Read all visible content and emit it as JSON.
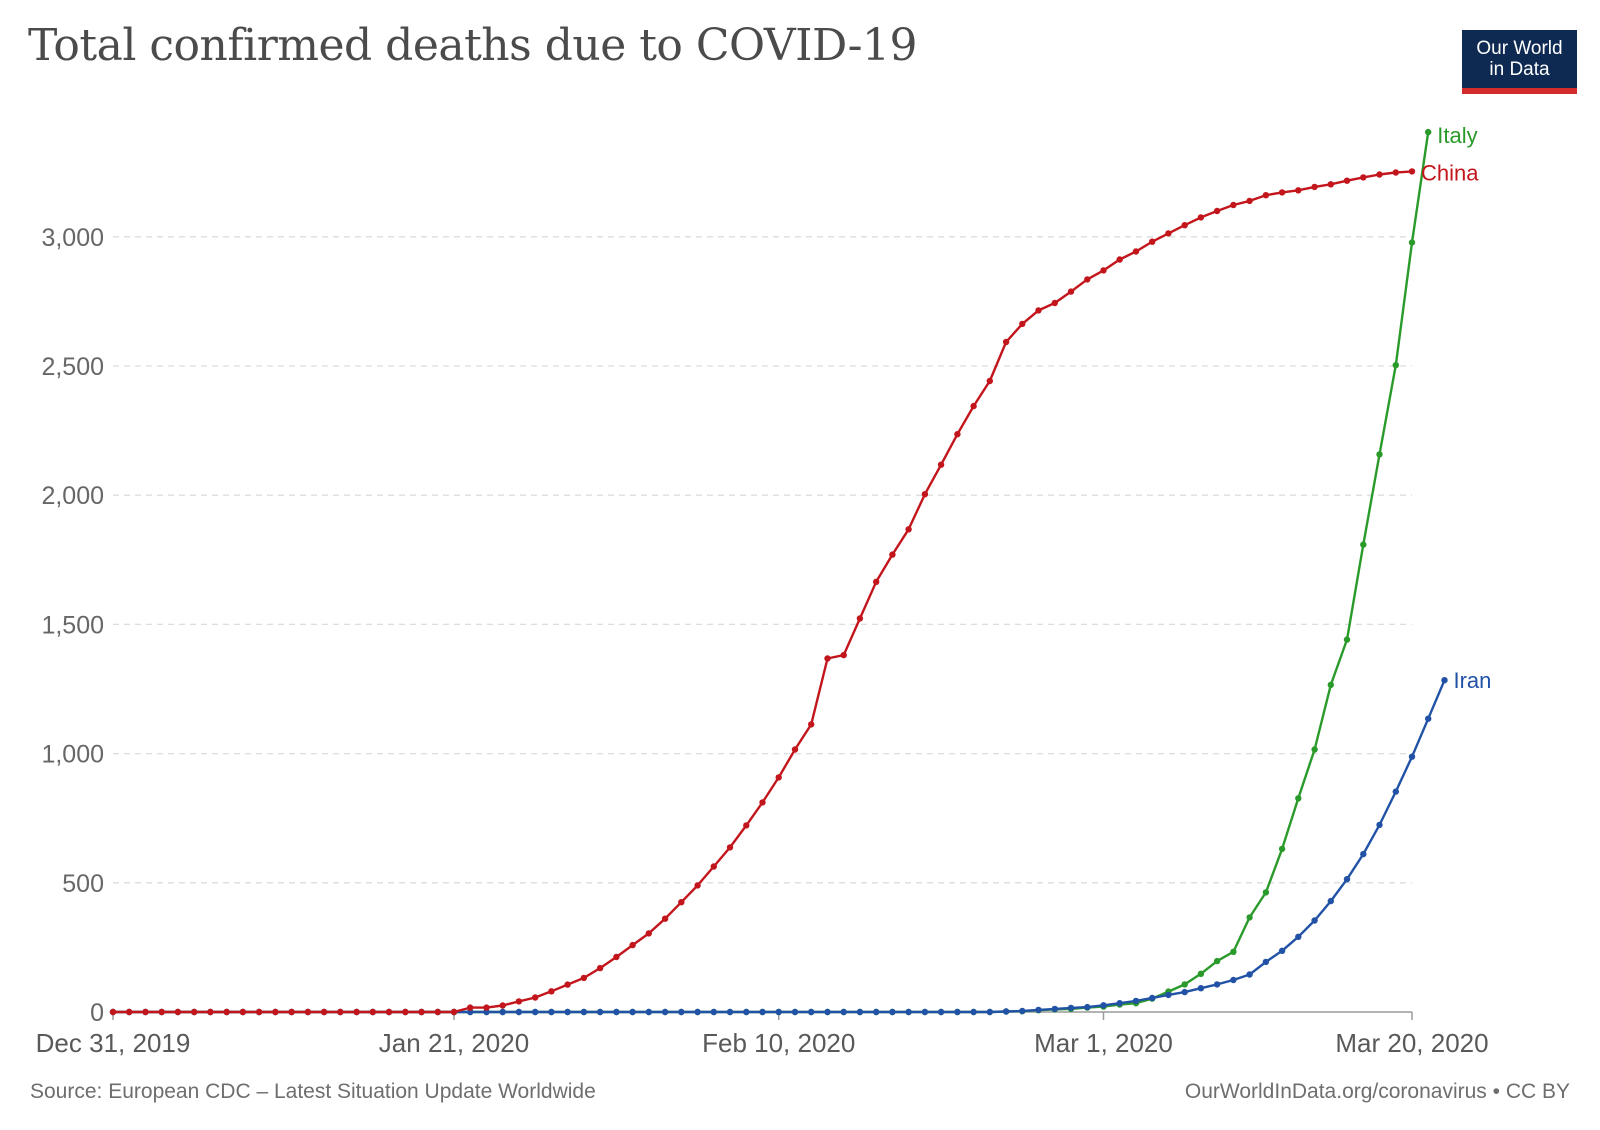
{
  "header": {
    "title": "Total confirmed deaths due to COVID-19",
    "logo_line1": "Our World",
    "logo_line2": "in Data"
  },
  "footer": {
    "source": "Source: European CDC – Latest Situation Update Worldwide",
    "credit": "OurWorldInData.org/coronavirus • CC BY"
  },
  "colors": {
    "china": "#c3161c",
    "italy": "#2a9a2a",
    "iran": "#2252a5",
    "logo_bg": "#0f2a52",
    "logo_stripe": "#d42b2b"
  },
  "chart_data": {
    "type": "line",
    "title": "Total confirmed deaths due to COVID-19",
    "x_start": "2019-12-31",
    "x_end": "2020-03-20",
    "x_ticks": [
      "Dec 31, 2019",
      "Jan 21, 2020",
      "Feb 10, 2020",
      "Mar 1, 2020",
      "Mar 20, 2020"
    ],
    "y_ticks": [
      "0",
      "500",
      "1,000",
      "1,500",
      "2,000",
      "2,500",
      "3,000"
    ],
    "ylim": [
      0,
      3405
    ],
    "grid": "horizontal dashed",
    "legend": "line end labels",
    "series": [
      {
        "name": "China",
        "color": "#c3161c",
        "values": [
          0,
          0,
          0,
          0,
          0,
          0,
          0,
          0,
          0,
          0,
          0,
          0,
          0,
          0,
          0,
          0,
          0,
          0,
          0,
          0,
          0,
          0,
          17,
          17,
          25,
          41,
          56,
          80,
          106,
          132,
          170,
          213,
          259,
          304,
          361,
          425,
          490,
          563,
          637,
          722,
          811,
          908,
          1016,
          1113,
          1368,
          1381,
          1523,
          1665,
          1770,
          1868,
          2004,
          2118,
          2236,
          2345,
          2442,
          2593,
          2663,
          2715,
          2744,
          2788,
          2835,
          2870,
          2912,
          2943,
          2981,
          3013,
          3045,
          3075,
          3100,
          3123,
          3139,
          3161,
          3172,
          3180,
          3193,
          3203,
          3217,
          3230,
          3241,
          3249,
          3253
        ]
      },
      {
        "name": "Italy",
        "color": "#2a9a2a",
        "values": [
          0,
          0,
          0,
          0,
          0,
          0,
          0,
          0,
          0,
          0,
          0,
          0,
          0,
          0,
          0,
          0,
          0,
          0,
          0,
          0,
          0,
          0,
          0,
          0,
          0,
          0,
          0,
          0,
          0,
          0,
          0,
          0,
          0,
          0,
          0,
          0,
          0,
          0,
          0,
          0,
          0,
          0,
          0,
          0,
          0,
          0,
          0,
          0,
          0,
          0,
          0,
          0,
          0,
          0,
          0,
          2,
          3,
          7,
          10,
          12,
          17,
          21,
          29,
          34,
          52,
          79,
          107,
          148,
          197,
          233,
          366,
          463,
          631,
          827,
          1016,
          1266,
          1441,
          1809,
          2158,
          2503,
          2978,
          3405
        ]
      },
      {
        "name": "Iran",
        "color": "#2252a5",
        "values": [
          0,
          0,
          0,
          0,
          0,
          0,
          0,
          0,
          0,
          0,
          0,
          0,
          0,
          0,
          0,
          0,
          0,
          0,
          0,
          0,
          0,
          0,
          0,
          0,
          0,
          0,
          0,
          0,
          0,
          0,
          0,
          0,
          0,
          0,
          0,
          0,
          0,
          0,
          0,
          0,
          0,
          0,
          0,
          0,
          0,
          0,
          0,
          0,
          0,
          0,
          0,
          0,
          0,
          0,
          0,
          2,
          4,
          8,
          12,
          16,
          19,
          26,
          34,
          43,
          54,
          66,
          77,
          92,
          107,
          124,
          145,
          194,
          237,
          291,
          354,
          429,
          514,
          611,
          724,
          853,
          988,
          1135,
          1284
        ]
      }
    ]
  }
}
